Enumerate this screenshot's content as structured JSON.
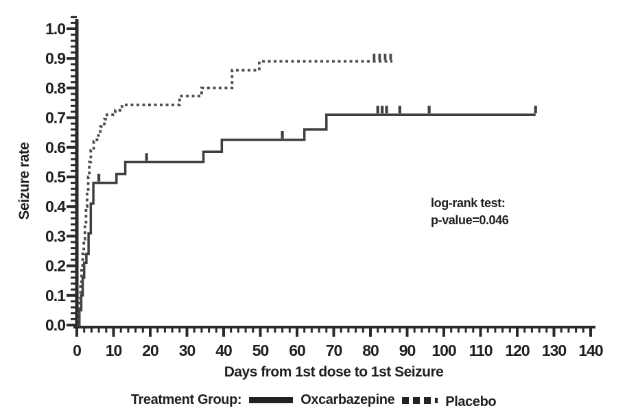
{
  "figure": {
    "ink_color": "#2a2a2a",
    "text_color": "#1f1f1f"
  },
  "chart_data": {
    "type": "line",
    "subtype": "kaplan-meier-step",
    "title": "",
    "xlabel": "Days from 1st dose to 1st Seizure",
    "ylabel": "Seizure rate",
    "xlim": [
      0,
      140
    ],
    "ylim": [
      0.0,
      1.0
    ],
    "x_tick_labels": [
      "0",
      "10",
      "20",
      "30",
      "40",
      "50",
      "60",
      "70",
      "80",
      "90",
      "100",
      "110",
      "120",
      "130",
      "140"
    ],
    "x_major_step": 10,
    "x_minor_step": 2,
    "y_tick_labels": [
      "0.0",
      "0.1",
      "0.2",
      "0.3",
      "0.4",
      "0.5",
      "0.6",
      "0.7",
      "0.8",
      "0.9",
      "1.0"
    ],
    "y_major_step": 0.1,
    "y_minor_step": 0.02,
    "grid": false,
    "series": [
      {
        "name": "Oxcarbazepine",
        "style": "solid",
        "color": "#3f3f3f",
        "steps": [
          [
            0,
            0
          ],
          [
            0.7,
            0.05
          ],
          [
            1.2,
            0.1
          ],
          [
            1.6,
            0.16
          ],
          [
            2.0,
            0.21
          ],
          [
            2.6,
            0.24
          ],
          [
            3.2,
            0.31
          ],
          [
            3.8,
            0.41
          ],
          [
            4.5,
            0.48
          ],
          [
            10.8,
            0.51
          ],
          [
            13.2,
            0.55
          ],
          [
            34.5,
            0.585
          ],
          [
            39.5,
            0.625
          ],
          [
            62,
            0.66
          ],
          [
            68,
            0.71
          ]
        ],
        "end_day": 125,
        "censor_days": [
          6,
          19,
          56,
          82,
          83.2,
          84.4,
          88,
          96,
          125
        ],
        "censor_values": [
          0.48,
          0.55,
          0.625,
          0.71,
          0.71,
          0.71,
          0.71,
          0.71,
          0.71
        ]
      },
      {
        "name": "Placebo",
        "style": "dashed",
        "color": "#4a4a4a",
        "steps": [
          [
            0,
            0
          ],
          [
            0.4,
            0.04
          ],
          [
            0.7,
            0.09
          ],
          [
            1.0,
            0.14
          ],
          [
            1.3,
            0.19
          ],
          [
            1.6,
            0.24
          ],
          [
            1.9,
            0.29
          ],
          [
            2.2,
            0.34
          ],
          [
            2.5,
            0.4
          ],
          [
            2.8,
            0.45
          ],
          [
            3.1,
            0.5
          ],
          [
            3.4,
            0.55
          ],
          [
            3.8,
            0.59
          ],
          [
            4.6,
            0.62
          ],
          [
            5.5,
            0.64
          ],
          [
            6.4,
            0.67
          ],
          [
            7.5,
            0.695
          ],
          [
            8.2,
            0.71
          ],
          [
            10.5,
            0.725
          ],
          [
            12.3,
            0.743
          ],
          [
            28,
            0.773
          ],
          [
            34,
            0.8
          ],
          [
            42.3,
            0.86
          ],
          [
            49.7,
            0.89
          ]
        ],
        "end_day": 86,
        "censor_days": [
          81,
          82.5,
          84,
          85.5
        ],
        "censor_values": [
          0.89,
          0.89,
          0.89,
          0.89
        ]
      }
    ],
    "annotation": {
      "line1": "log-rank test:",
      "line2": "p-value=0.046"
    },
    "legend": {
      "position": "bottom-center",
      "title": "Treatment Group:",
      "oxcarbazepine_label": "Oxcarbazepine",
      "placebo_label": "Placebo"
    }
  }
}
